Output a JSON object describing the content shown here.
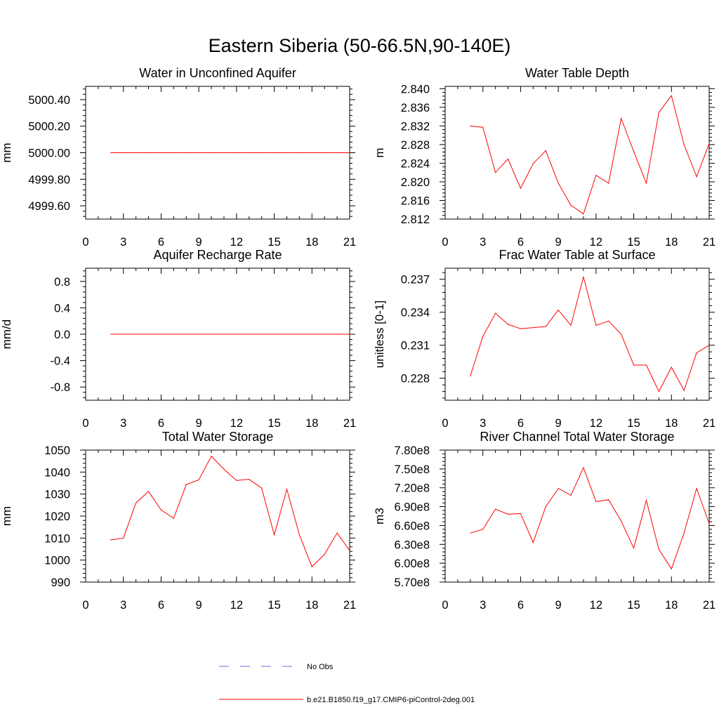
{
  "title": "Eastern Siberia (50-66.5N,90-140E)",
  "series_color": "#ff0000",
  "obs_color": "#6b6bd6",
  "legend": {
    "entries": [
      {
        "label": "No Obs",
        "style": "dashed",
        "color": "#6b6bd6"
      },
      {
        "label": "b.e21.B1850.f19_g17.CMIP6-piControl-2deg.001",
        "style": "solid",
        "color": "#ff0000"
      }
    ]
  },
  "chart_data": [
    {
      "type": "line",
      "title": "Water in Unconfined Aquifer",
      "ylabel": "mm",
      "xlim": [
        0,
        21
      ],
      "ylim": [
        4999.5,
        5000.5
      ],
      "xticks": [
        0,
        3,
        6,
        9,
        12,
        15,
        18,
        21
      ],
      "yticks": [
        4999.6,
        4999.8,
        5000.0,
        5000.2,
        5000.4
      ],
      "ytick_labels": [
        "4999.60",
        "4999.80",
        "5000.00",
        "5000.20",
        "5000.40"
      ],
      "x": [
        2,
        3,
        4,
        5,
        6,
        7,
        8,
        9,
        10,
        11,
        12,
        13,
        14,
        15,
        16,
        17,
        18,
        19,
        20,
        21
      ],
      "series": [
        {
          "values": [
            5000,
            5000,
            5000,
            5000,
            5000,
            5000,
            5000,
            5000,
            5000,
            5000,
            5000,
            5000,
            5000,
            5000,
            5000,
            5000,
            5000,
            5000,
            5000,
            5000
          ]
        }
      ]
    },
    {
      "type": "line",
      "title": "Water Table Depth",
      "ylabel": "m",
      "xlim": [
        0,
        21
      ],
      "ylim": [
        2.812,
        2.8405
      ],
      "xticks": [
        0,
        3,
        6,
        9,
        12,
        15,
        18,
        21
      ],
      "yticks": [
        2.812,
        2.816,
        2.82,
        2.824,
        2.828,
        2.832,
        2.836,
        2.84
      ],
      "ytick_labels": [
        "2.812",
        "2.816",
        "2.820",
        "2.824",
        "2.828",
        "2.832",
        "2.836",
        "2.840"
      ],
      "x": [
        2,
        3,
        4,
        5,
        6,
        7,
        8,
        9,
        10,
        11,
        12,
        13,
        14,
        15,
        16,
        17,
        18,
        19,
        20,
        21
      ],
      "series": [
        {
          "values": [
            2.832,
            2.8317,
            2.822,
            2.8249,
            2.8186,
            2.8239,
            2.8267,
            2.8197,
            2.815,
            2.8131,
            2.8214,
            2.8197,
            2.8336,
            2.8265,
            2.8197,
            2.8349,
            2.8385,
            2.828,
            2.8211,
            2.8282
          ]
        }
      ]
    },
    {
      "type": "line",
      "title": "Aquifer Recharge Rate",
      "ylabel": "mm/d",
      "xlim": [
        0,
        21
      ],
      "ylim": [
        -1,
        1
      ],
      "xticks": [
        0,
        3,
        6,
        9,
        12,
        15,
        18,
        21
      ],
      "yticks": [
        -0.8,
        -0.4,
        0,
        0.4,
        0.8
      ],
      "ytick_labels": [
        "-0.8",
        "-0.4",
        "0.0",
        "0.4",
        "0.8"
      ],
      "x": [
        2,
        3,
        4,
        5,
        6,
        7,
        8,
        9,
        10,
        11,
        12,
        13,
        14,
        15,
        16,
        17,
        18,
        19,
        20,
        21
      ],
      "series": [
        {
          "values": [
            0,
            0,
            0,
            0,
            0,
            0,
            0,
            0,
            0,
            0,
            0,
            0,
            0,
            0,
            0,
            0,
            0,
            0,
            0,
            0
          ]
        }
      ]
    },
    {
      "type": "line",
      "title": "Frac Water Table at Surface",
      "ylabel": "unitless [0-1]",
      "xlim": [
        0,
        21
      ],
      "ylim": [
        0.226,
        0.238
      ],
      "xticks": [
        0,
        3,
        6,
        9,
        12,
        15,
        18,
        21
      ],
      "yticks": [
        0.228,
        0.231,
        0.234,
        0.237
      ],
      "ytick_labels": [
        "0.228",
        "0.231",
        "0.234",
        "0.237"
      ],
      "x": [
        2,
        3,
        4,
        5,
        6,
        7,
        8,
        9,
        10,
        11,
        12,
        13,
        14,
        15,
        16,
        17,
        18,
        19,
        20,
        21
      ],
      "series": [
        {
          "values": [
            0.2282,
            0.2318,
            0.2339,
            0.2329,
            0.2325,
            0.2326,
            0.2327,
            0.2342,
            0.2328,
            0.2372,
            0.2328,
            0.2332,
            0.232,
            0.2292,
            0.2292,
            0.2268,
            0.229,
            0.2269,
            0.2303,
            0.231
          ]
        }
      ]
    },
    {
      "type": "line",
      "title": "Total Water Storage",
      "ylabel": "mm",
      "xlim": [
        0,
        21
      ],
      "ylim": [
        990,
        1050
      ],
      "xticks": [
        0,
        3,
        6,
        9,
        12,
        15,
        18,
        21
      ],
      "yticks": [
        990,
        1000,
        1010,
        1020,
        1030,
        1040,
        1050
      ],
      "ytick_labels": [
        "990",
        "1000",
        "1010",
        "1020",
        "1030",
        "1040",
        "1050"
      ],
      "x": [
        2,
        3,
        4,
        5,
        6,
        7,
        8,
        9,
        10,
        11,
        12,
        13,
        14,
        15,
        16,
        17,
        18,
        19,
        20,
        21
      ],
      "series": [
        {
          "values": [
            1009.2,
            1010,
            1026,
            1031.2,
            1022.8,
            1019,
            1034.3,
            1036.5,
            1047.2,
            1041.3,
            1036.2,
            1036.7,
            1032.7,
            1011.5,
            1032.2,
            1011.5,
            997,
            1002.6,
            1012.3,
            1004.3
          ]
        }
      ]
    },
    {
      "type": "line",
      "title": "River Channel Total Water Storage",
      "ylabel": "m3",
      "xlim": [
        0,
        21
      ],
      "ylim": [
        570000000,
        780000000
      ],
      "xticks": [
        0,
        3,
        6,
        9,
        12,
        15,
        18,
        21
      ],
      "yticks": [
        570000000,
        600000000,
        630000000,
        660000000,
        690000000,
        720000000,
        750000000,
        780000000
      ],
      "ytick_labels": [
        "5.70e8",
        "6.00e8",
        "6.30e8",
        "6.60e8",
        "6.90e8",
        "7.20e8",
        "7.50e8",
        "7.80e8"
      ],
      "x": [
        2,
        3,
        4,
        5,
        6,
        7,
        8,
        9,
        10,
        11,
        12,
        13,
        14,
        15,
        16,
        17,
        18,
        19,
        20,
        21
      ],
      "series": [
        {
          "values": [
            648000000,
            654000000,
            686000000,
            678000000,
            679000000,
            633000000,
            690000000,
            719000000,
            708000000,
            752000000,
            698000000,
            701000000,
            667000000,
            624000000,
            700000000,
            622000000,
            591000000,
            648000000,
            719000000,
            663000000
          ]
        }
      ]
    }
  ]
}
